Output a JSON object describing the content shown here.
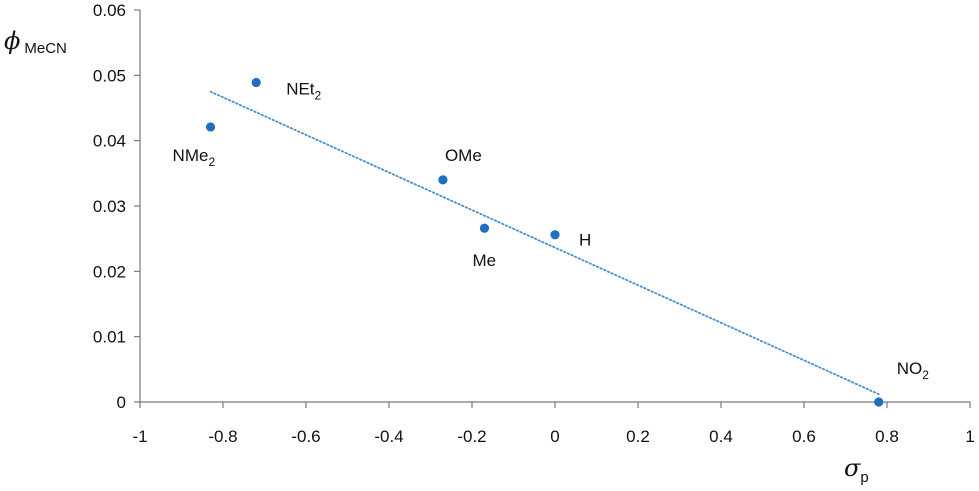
{
  "chart_data": {
    "type": "scatter",
    "xlabel": {
      "symbol": "σ",
      "subscript": "p"
    },
    "ylabel": {
      "symbol": "ϕ",
      "subscript": "MeCN"
    },
    "xlim": [
      -1,
      1
    ],
    "ylim": [
      0,
      0.06
    ],
    "x_ticks": [
      -1,
      -0.8,
      -0.6,
      -0.4,
      -0.2,
      0,
      0.2,
      0.4,
      0.6,
      0.8,
      1
    ],
    "x_tick_labels": [
      "-1",
      "-0.8",
      "-0.6",
      "-0.4",
      "-0.2",
      "0",
      "0.2",
      "0.4",
      "0.6",
      "0.8",
      "1"
    ],
    "y_ticks": [
      0,
      0.01,
      0.02,
      0.03,
      0.04,
      0.05,
      0.06
    ],
    "y_tick_labels": [
      "0",
      "0.01",
      "0.02",
      "0.03",
      "0.04",
      "0.05",
      "0.06"
    ],
    "grid": false,
    "legend": false,
    "marker_color": "#1F6FBF",
    "trendline": {
      "style": "dotted",
      "color": "#4A8FD0",
      "points": [
        [
          -0.83,
          0.0475
        ],
        [
          0.78,
          0.0012
        ]
      ]
    },
    "points": [
      {
        "label": "NEt",
        "label_sub": "2",
        "x": -0.72,
        "y": 0.0489,
        "label_pos": "right"
      },
      {
        "label": "NMe",
        "label_sub": "2",
        "x": -0.83,
        "y": 0.0421,
        "label_pos": "below"
      },
      {
        "label": "OMe",
        "label_sub": "",
        "x": -0.27,
        "y": 0.034,
        "label_pos": "above"
      },
      {
        "label": "Me",
        "label_sub": "",
        "x": -0.17,
        "y": 0.0266,
        "label_pos": "below"
      },
      {
        "label": "H",
        "label_sub": "",
        "x": 0.0,
        "y": 0.0256,
        "label_pos": "right"
      },
      {
        "label": "NO",
        "label_sub": "2",
        "x": 0.78,
        "y": 0.0,
        "label_pos": "above"
      }
    ]
  }
}
